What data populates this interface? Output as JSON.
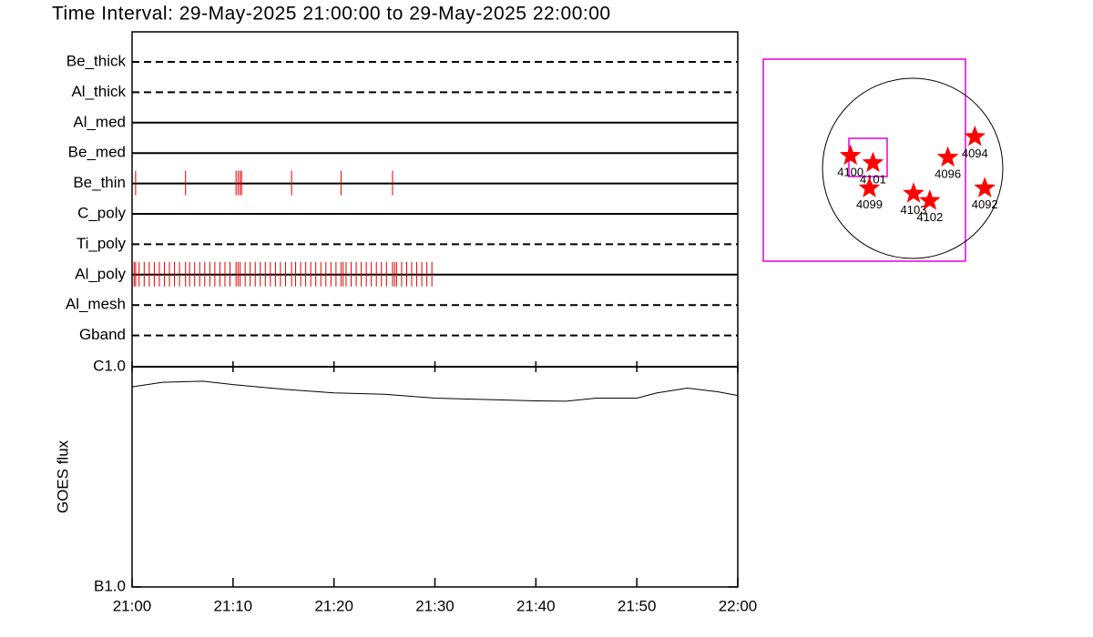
{
  "chart_data": [
    {
      "type": "timeline",
      "title": "Time Interval: 29-May-2025 21:00:00 to 29-May-2025 22:00:00",
      "xlim": [
        0,
        60
      ],
      "color": "#e00000",
      "rows": [
        {
          "name": "Be_thick",
          "style": "dashed",
          "events": []
        },
        {
          "name": "Al_thick",
          "style": "dashed",
          "events": []
        },
        {
          "name": "Al_med",
          "style": "solid",
          "events": []
        },
        {
          "name": "Be_med",
          "style": "solid",
          "events": []
        },
        {
          "name": "Be_thin",
          "style": "solid",
          "events": [
            0.35,
            5.3,
            10.3,
            10.5,
            10.7,
            10.85,
            15.8,
            20.7,
            25.8
          ]
        },
        {
          "name": "C_poly",
          "style": "solid",
          "events": []
        },
        {
          "name": "Ti_poly",
          "style": "dashed",
          "events": []
        },
        {
          "name": "Al_poly",
          "style": "solid",
          "events": [
            0.2,
            0.35,
            0.7,
            1.2,
            1.7,
            2.2,
            2.7,
            3.2,
            3.7,
            4.2,
            4.7,
            5.3,
            5.7,
            6.2,
            6.7,
            7.2,
            7.7,
            8.2,
            8.7,
            9.2,
            9.7,
            10.3,
            10.5,
            10.7,
            11.2,
            11.7,
            12.2,
            12.7,
            13.2,
            13.7,
            14.2,
            14.7,
            15.2,
            15.8,
            16.2,
            16.7,
            17.2,
            17.7,
            18.2,
            18.7,
            19.2,
            19.7,
            20.2,
            20.7,
            20.9,
            21.2,
            21.7,
            22.2,
            22.7,
            23.2,
            23.7,
            24.2,
            24.7,
            25.2,
            25.8,
            26.0,
            26.2,
            26.7,
            27.2,
            27.7,
            28.2,
            28.7,
            29.2,
            29.7
          ]
        },
        {
          "name": "Al_mesh",
          "style": "dashed",
          "events": []
        },
        {
          "name": "Gband",
          "style": "dashed",
          "events": []
        }
      ]
    },
    {
      "type": "line",
      "ylabel": "GOES flux",
      "log": true,
      "color": "#000000",
      "xlim": [
        0,
        60
      ],
      "xticks": [
        {
          "value": 0,
          "label": "21:00"
        },
        {
          "value": 10,
          "label": "21:10"
        },
        {
          "value": 20,
          "label": "21:20"
        },
        {
          "value": 30,
          "label": "21:30"
        },
        {
          "value": 40,
          "label": "21:40"
        },
        {
          "value": 50,
          "label": "21:50"
        },
        {
          "value": 60,
          "label": "22:00"
        }
      ],
      "ylim": [
        1e-07,
        1e-06
      ],
      "yticks": [
        {
          "value": 1e-07,
          "label": "B1.0"
        },
        {
          "value": 1e-06,
          "label": "C1.0"
        }
      ],
      "x": [
        0,
        3,
        7,
        10,
        15,
        20,
        25,
        30,
        35,
        40,
        43,
        46,
        50,
        52,
        55,
        58,
        60
      ],
      "values": [
        8.1e-07,
        8.5e-07,
        8.6e-07,
        8.3e-07,
        7.9e-07,
        7.6e-07,
        7.5e-07,
        7.2e-07,
        7.1e-07,
        7e-07,
        6.97e-07,
        7.2e-07,
        7.2e-07,
        7.6e-07,
        8e-07,
        7.7e-07,
        7.4e-07
      ]
    },
    {
      "type": "map",
      "color": "#ff0000",
      "labels": [
        "4100",
        "4101",
        "4099",
        "4103",
        "4102",
        "4096",
        "4094",
        "4092"
      ],
      "x": [
        -0.69,
        -0.44,
        -0.48,
        0.01,
        0.19,
        0.39,
        0.69,
        0.8
      ],
      "values": [
        0.14,
        0.06,
        -0.22,
        -0.28,
        -0.36,
        0.12,
        0.35,
        -0.22
      ]
    }
  ]
}
